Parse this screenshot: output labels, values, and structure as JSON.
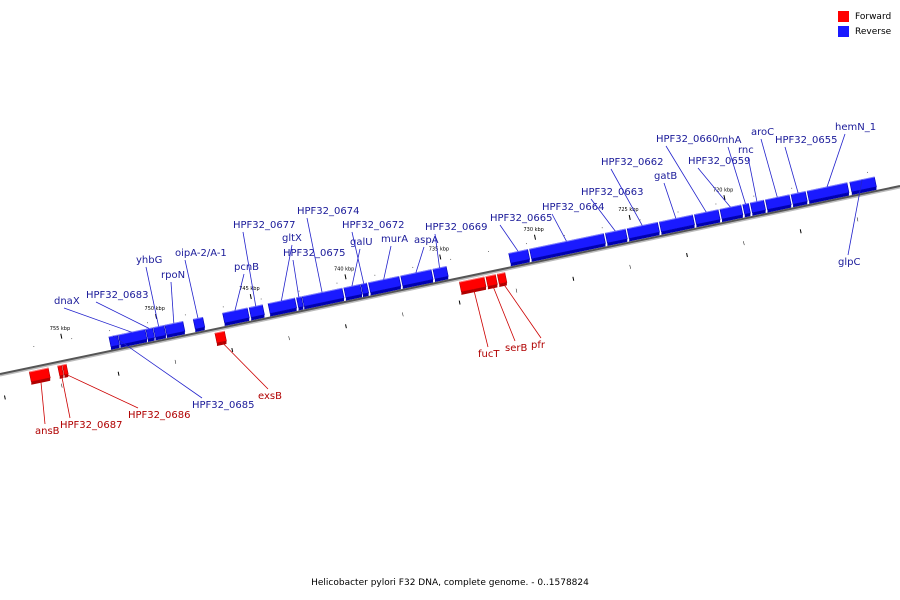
{
  "title": "Helicobacter pylori F32 DNA, complete genome. - 0..1578824",
  "colors": {
    "forward": "#ff0000",
    "reverse": "#1a1aff",
    "forward_label": "#b00000",
    "reverse_label": "#1a1a99"
  },
  "legend": [
    {
      "label": "Forward",
      "strand": "forward"
    },
    {
      "label": "Reverse",
      "strand": "reverse"
    }
  ],
  "ticks": [
    {
      "label": "755 kbp",
      "bp": 755000
    },
    {
      "label": "750 kbp",
      "bp": 750000
    },
    {
      "label": "745 kbp",
      "bp": 745000
    },
    {
      "label": "740 kbp",
      "bp": 740000
    },
    {
      "label": "735 kbp",
      "bp": 735000
    },
    {
      "label": "730 kbp",
      "bp": 730000
    },
    {
      "label": "725 kbp",
      "bp": 725000
    },
    {
      "label": "720 kbp",
      "bp": 720000
    }
  ],
  "genes": [
    {
      "name": "ansB",
      "strand": "forward",
      "start": 757000,
      "end": 756000
    },
    {
      "name": "HPF32_0687",
      "strand": "forward",
      "start": 755500,
      "end": 755300
    },
    {
      "name": "HPF32_0686",
      "strand": "forward",
      "start": 755250,
      "end": 755050
    },
    {
      "name": "HPF32_0685",
      "strand": "reverse",
      "start": 752600,
      "end": 752150
    },
    {
      "name": "dnaX",
      "strand": "reverse",
      "start": 752100,
      "end": 750700
    },
    {
      "name": "HPF32_0683",
      "strand": "reverse",
      "start": 750650,
      "end": 750300
    },
    {
      "name": "yhbG",
      "strand": "reverse",
      "start": 750250,
      "end": 749700
    },
    {
      "name": "rpoN",
      "strand": "reverse",
      "start": 749650,
      "end": 748700
    },
    {
      "name": "oipA-2/A-1",
      "strand": "reverse",
      "start": 748150,
      "end": 747650
    },
    {
      "name": "exsB",
      "strand": "forward",
      "start": 747200,
      "end": 746700
    },
    {
      "name": "pcnB",
      "strand": "reverse",
      "start": 746600,
      "end": 745300
    },
    {
      "name": "HPF32_0677",
      "strand": "reverse",
      "start": 745200,
      "end": 744500
    },
    {
      "name": "gltX",
      "strand": "reverse",
      "start": 744200,
      "end": 742800
    },
    {
      "name": "HPF32_0675",
      "strand": "reverse",
      "start": 742700,
      "end": 742450
    },
    {
      "name": "HPF32_0674",
      "strand": "reverse",
      "start": 742400,
      "end": 740300
    },
    {
      "name": "galU",
      "strand": "reverse",
      "start": 740200,
      "end": 739350
    },
    {
      "name": "HPF32_0672",
      "strand": "reverse",
      "start": 739300,
      "end": 739000
    },
    {
      "name": "murA",
      "strand": "reverse",
      "start": 738900,
      "end": 737300
    },
    {
      "name": "aspA",
      "strand": "reverse",
      "start": 737200,
      "end": 735600
    },
    {
      "name": "HPF32_0669",
      "strand": "reverse",
      "start": 735500,
      "end": 734800
    },
    {
      "name": "fucT",
      "strand": "forward",
      "start": 734300,
      "end": 733000
    },
    {
      "name": "serB",
      "strand": "forward",
      "start": 732900,
      "end": 732400
    },
    {
      "name": "pfr",
      "strand": "forward",
      "start": 732300,
      "end": 731900
    },
    {
      "name": "HPF32_0665",
      "strand": "reverse",
      "start": 731500,
      "end": 730500
    },
    {
      "name": "HPF32_0664",
      "strand": "reverse",
      "start": 730400,
      "end": 726500
    },
    {
      "name": "HPF32_0663",
      "strand": "reverse",
      "start": 726400,
      "end": 725350
    },
    {
      "name": "HPF32_0662",
      "strand": "reverse",
      "start": 725250,
      "end": 723650
    },
    {
      "name": "gatB",
      "strand": "reverse",
      "start": 723550,
      "end": 721800
    },
    {
      "name": "HPF32_0660",
      "strand": "reverse",
      "start": 721700,
      "end": 720450
    },
    {
      "name": "HPF32_0659",
      "strand": "reverse",
      "start": 720350,
      "end": 719250
    },
    {
      "name": "rnhA",
      "strand": "reverse",
      "start": 719150,
      "end": 718850
    },
    {
      "name": "rnc",
      "strand": "reverse",
      "start": 718750,
      "end": 718050
    },
    {
      "name": "aroC",
      "strand": "reverse",
      "start": 717950,
      "end": 716700
    },
    {
      "name": "HPF32_0655",
      "strand": "reverse",
      "start": 716600,
      "end": 715850
    },
    {
      "name": "hemN_1",
      "strand": "reverse",
      "start": 715750,
      "end": 713650
    },
    {
      "name": "glpC",
      "strand": "reverse",
      "start": 713500,
      "end": 712200
    }
  ]
}
